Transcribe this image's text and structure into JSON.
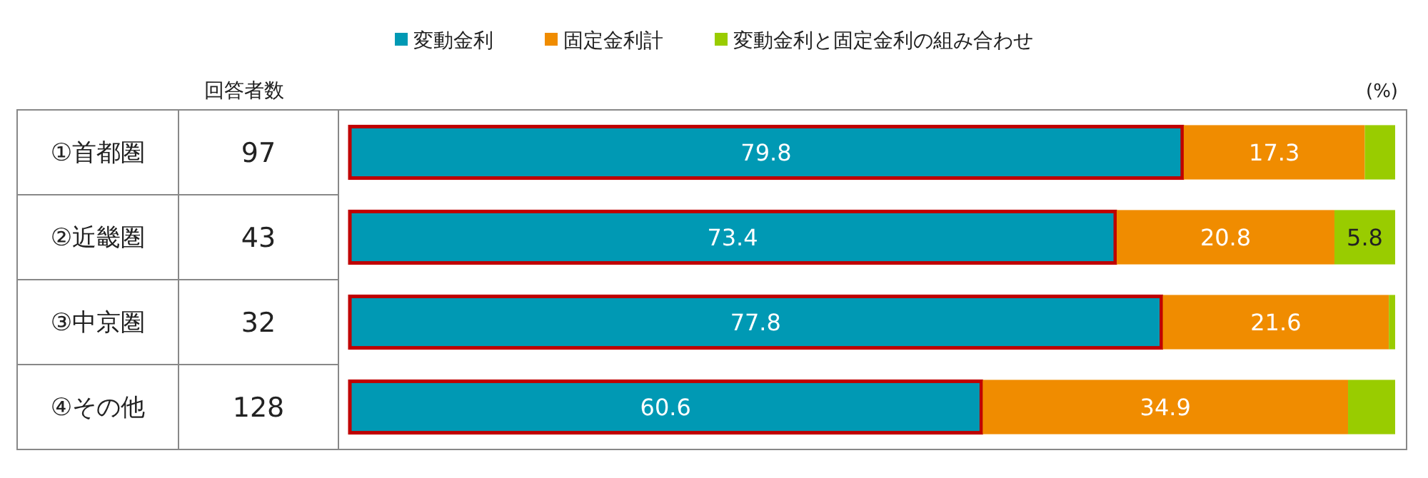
{
  "chart_data": {
    "type": "bar",
    "orientation": "horizontal",
    "stacked": true,
    "categories": [
      "①首都圏",
      "②近畿圏",
      "③中京圏",
      "④その他"
    ],
    "series": [
      {
        "name": "変動金利",
        "color": "#0099b4",
        "values": [
          79.8,
          73.4,
          77.8,
          60.6
        ],
        "value_labels": [
          "79.8",
          "73.4",
          "77.8",
          "60.6"
        ]
      },
      {
        "name": "固定金利計",
        "color": "#f08c00",
        "values": [
          17.3,
          20.8,
          21.6,
          34.9
        ],
        "value_labels": [
          "17.3",
          "20.8",
          "21.6",
          "34.9"
        ]
      },
      {
        "name": "変動金利と固定金利の組み合わせ",
        "color": "#99cc00",
        "values": [
          2.9,
          5.8,
          0.6,
          4.5
        ],
        "value_labels": [
          null,
          "5.8",
          null,
          null
        ]
      }
    ],
    "xlim": [
      0,
      100
    ],
    "xlabel": "(%)",
    "tick_labels": false,
    "legend": "top",
    "annotations": [
      "回答者数",
      "97",
      "43",
      "32",
      "128"
    ]
  }
}
